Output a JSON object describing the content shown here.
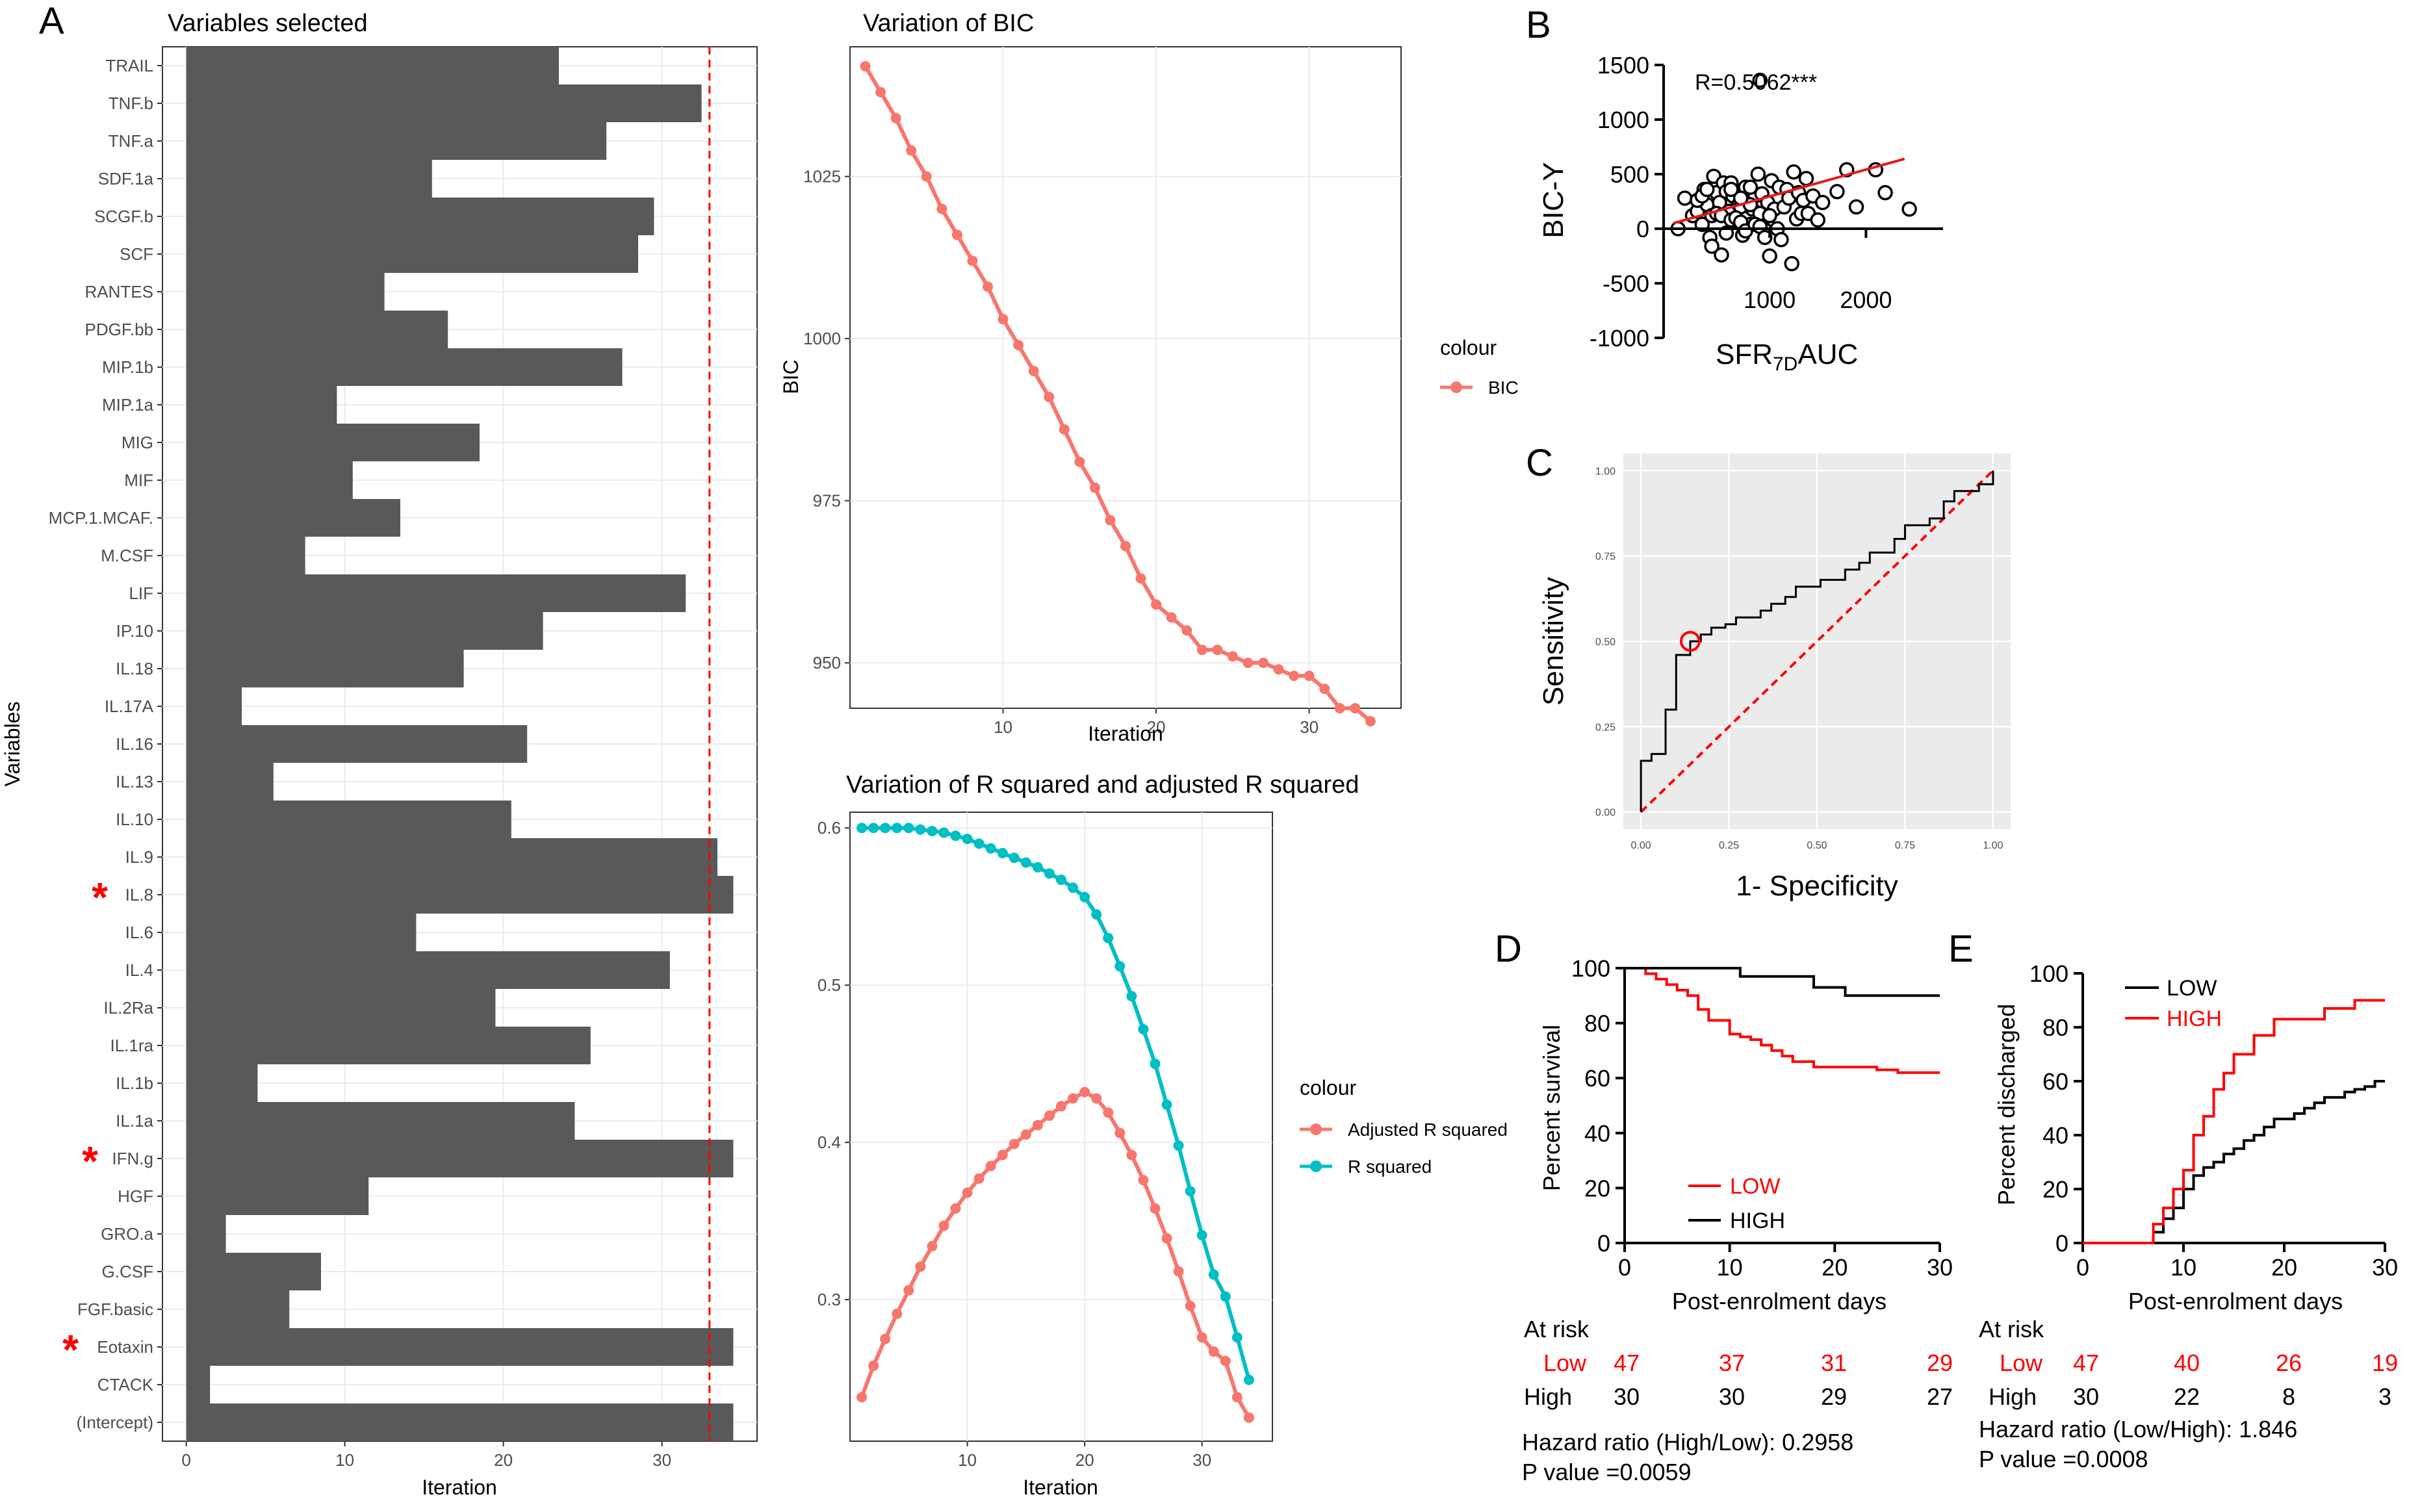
{
  "panel_letters": {
    "A": "A",
    "B": "B",
    "C": "C",
    "D": "D",
    "E": "E"
  },
  "colors": {
    "bar": "#595959",
    "red": "#ff0000",
    "bic": "#f8766d",
    "rsq": "#00bfc4",
    "grid": "#ebebeb",
    "panel_bg": "#ebebeb",
    "axis": "#000000"
  },
  "chart_data": [
    {
      "id": "A",
      "type": "bar",
      "orientation": "horizontal",
      "title": "Variables selected",
      "xlabel": "Iteration",
      "ylabel": "Variables",
      "xlim": [
        -1.5,
        36
      ],
      "xticks": [
        0,
        10,
        20,
        30
      ],
      "threshold": 33,
      "categories": [
        "TRAIL",
        "TNF.b",
        "TNF.a",
        "SDF.1a",
        "SCGF.b",
        "SCF",
        "RANTES",
        "PDGF.bb",
        "MIP.1b",
        "MIP.1a",
        "MIG",
        "MIF",
        "MCP.1.MCAF.",
        "M.CSF",
        "LIF",
        "IP.10",
        "IL.18",
        "IL.17A",
        "IL.16",
        "IL.13",
        "IL.10",
        "IL.9",
        "IL.8",
        "IL.6",
        "IL.4",
        "IL.2Ra",
        "IL.1ra",
        "IL.1b",
        "IL.1a",
        "IFN.g",
        "HGF",
        "GRO.a",
        "G.CSF",
        "FGF.basic",
        "Eotaxin",
        "CTACK",
        "(Intercept)"
      ],
      "values": [
        23.5,
        32.5,
        26.5,
        15.5,
        29.5,
        28.5,
        12.5,
        16.5,
        27.5,
        9.5,
        18.5,
        10.5,
        13.5,
        7.5,
        31.5,
        22.5,
        17.5,
        3.5,
        21.5,
        5.5,
        20.5,
        33.5,
        34.5,
        14.5,
        30.5,
        19.5,
        25.5,
        4.5,
        24.5,
        34.5,
        11.5,
        2.5,
        8.5,
        6.5,
        34.5,
        1.5,
        34.5
      ],
      "starred": [
        "IL.8",
        "IFN.g",
        "Eotaxin"
      ],
      "star_symbol": "*"
    },
    {
      "id": "A-bic",
      "type": "line",
      "title": "Variation of BIC",
      "xlabel": "Iteration",
      "ylabel": "BIC",
      "xlim": [
        0,
        36
      ],
      "ylim": [
        943,
        1045
      ],
      "xticks": [
        10,
        20,
        30
      ],
      "yticks": [
        950,
        975,
        1000,
        1025
      ],
      "legend_title": "colour",
      "series": [
        {
          "name": "BIC",
          "color": "#f8766d",
          "x": [
            1,
            2,
            3,
            4,
            5,
            6,
            7,
            8,
            9,
            10,
            11,
            12,
            13,
            14,
            15,
            16,
            17,
            18,
            19,
            20,
            21,
            22,
            23,
            24,
            25,
            26,
            27,
            28,
            29,
            30,
            31,
            32,
            33,
            34
          ],
          "values": [
            1042,
            1038,
            1034,
            1029,
            1025,
            1020,
            1016,
            1012,
            1008,
            1003,
            999,
            995,
            991,
            986,
            981,
            977,
            972,
            968,
            963,
            959,
            957,
            955,
            952,
            952,
            951,
            950,
            950,
            949,
            948,
            948,
            946,
            943,
            943,
            941
          ]
        }
      ]
    },
    {
      "id": "A-rsq",
      "type": "line",
      "title": "Variation of R squared and adjusted R squared",
      "xlabel": "Iteration",
      "ylabel": "",
      "xlim": [
        0,
        36
      ],
      "ylim": [
        0.21,
        0.61
      ],
      "xticks": [
        10,
        20,
        30
      ],
      "yticks": [
        0.3,
        0.4,
        0.5,
        0.6
      ],
      "legend_title": "colour",
      "series": [
        {
          "name": "Adjusted R squared",
          "color": "#f8766d",
          "x": [
            1,
            2,
            3,
            4,
            5,
            6,
            7,
            8,
            9,
            10,
            11,
            12,
            13,
            14,
            15,
            16,
            17,
            18,
            19,
            20,
            21,
            22,
            23,
            24,
            25,
            26,
            27,
            28,
            29,
            30,
            31,
            32,
            33,
            34
          ],
          "values": [
            0.238,
            0.258,
            0.275,
            0.291,
            0.306,
            0.321,
            0.334,
            0.347,
            0.358,
            0.368,
            0.377,
            0.385,
            0.392,
            0.399,
            0.405,
            0.411,
            0.417,
            0.423,
            0.428,
            0.432,
            0.428,
            0.419,
            0.406,
            0.392,
            0.376,
            0.358,
            0.339,
            0.318,
            0.296,
            0.276,
            0.267,
            0.261,
            0.238,
            0.225
          ]
        },
        {
          "name": "R squared",
          "color": "#00bfc4",
          "x": [
            1,
            2,
            3,
            4,
            5,
            6,
            7,
            8,
            9,
            10,
            11,
            12,
            13,
            14,
            15,
            16,
            17,
            18,
            19,
            20,
            21,
            22,
            23,
            24,
            25,
            26,
            27,
            28,
            29,
            30,
            31,
            32,
            33,
            34
          ],
          "values": [
            0.6,
            0.6,
            0.6,
            0.6,
            0.6,
            0.599,
            0.598,
            0.597,
            0.595,
            0.593,
            0.59,
            0.587,
            0.584,
            0.581,
            0.578,
            0.575,
            0.571,
            0.567,
            0.562,
            0.556,
            0.545,
            0.53,
            0.512,
            0.493,
            0.472,
            0.45,
            0.424,
            0.398,
            0.369,
            0.341,
            0.316,
            0.302,
            0.276,
            0.249
          ]
        }
      ]
    },
    {
      "id": "B",
      "type": "scatter",
      "annotation": "R=0.5062***",
      "xlabel": "SFR",
      "xlabel_sub": "7D",
      "xlabel_suffix": "AUC",
      "ylabel": "BIC-Y",
      "xlim": [
        -100,
        2800
      ],
      "ylim": [
        -1000,
        1500
      ],
      "xticks": [
        1000,
        2000
      ],
      "yticks": [
        -1000,
        -500,
        0,
        500,
        1000,
        1500
      ],
      "fit": {
        "x": [
          0,
          2400
        ],
        "y": [
          50,
          640
        ]
      },
      "x": [
        50,
        120,
        200,
        250,
        300,
        320,
        350,
        380,
        400,
        420,
        450,
        480,
        500,
        520,
        550,
        580,
        600,
        620,
        650,
        680,
        700,
        720,
        750,
        780,
        800,
        820,
        850,
        880,
        900,
        920,
        950,
        980,
        1000,
        1020,
        1050,
        1080,
        1100,
        1120,
        1150,
        1180,
        1200,
        1230,
        1250,
        1280,
        1300,
        1330,
        1350,
        1380,
        1400,
        1450,
        1500,
        1550,
        1700,
        1800,
        1900,
        2100,
        2200,
        2450,
        250,
        300,
        350,
        400,
        450,
        500,
        550,
        600,
        650,
        700,
        750,
        800,
        850,
        900,
        950,
        1000,
        600,
        700,
        800,
        900
      ],
      "values": [
        0,
        280,
        120,
        160,
        40,
        360,
        220,
        -80,
        120,
        480,
        330,
        240,
        -240,
        420,
        340,
        160,
        420,
        300,
        80,
        220,
        200,
        -60,
        380,
        260,
        40,
        180,
        300,
        500,
        140,
        320,
        -10,
        240,
        -250,
        440,
        180,
        0,
        380,
        -100,
        200,
        360,
        280,
        -320,
        520,
        90,
        330,
        140,
        260,
        460,
        140,
        300,
        80,
        240,
        340,
        540,
        200,
        540,
        330,
        180,
        260,
        300,
        360,
        -160,
        140,
        120,
        -40,
        80,
        100,
        60,
        -20,
        220,
        40,
        20,
        -80,
        120,
        360,
        280,
        380,
        1360
      ]
    },
    {
      "id": "C",
      "type": "line",
      "subtype": "roc-step",
      "xlabel": "1- Specificity",
      "ylabel": "Sensitivity",
      "xlim": [
        -0.05,
        1.05
      ],
      "ylim": [
        -0.05,
        1.05
      ],
      "xticks": [
        0,
        0.25,
        0.5,
        0.75,
        1
      ],
      "yticks": [
        0,
        0.25,
        0.5,
        0.75,
        1
      ],
      "xtick_labels": [
        "0.00",
        "0.25",
        "0.50",
        "0.75",
        "1.00"
      ],
      "ytick_labels": [
        "0.00",
        "0.25",
        "0.50",
        "0.75",
        "1.00"
      ],
      "x": [
        0,
        0,
        0.03,
        0.03,
        0.07,
        0.07,
        0.1,
        0.1,
        0.14,
        0.14,
        0.17,
        0.17,
        0.2,
        0.2,
        0.24,
        0.24,
        0.27,
        0.27,
        0.34,
        0.34,
        0.37,
        0.37,
        0.41,
        0.41,
        0.44,
        0.44,
        0.51,
        0.51,
        0.58,
        0.58,
        0.62,
        0.62,
        0.65,
        0.65,
        0.72,
        0.72,
        0.75,
        0.75,
        0.82,
        0.82,
        0.86,
        0.86,
        0.89,
        0.89,
        0.96,
        0.96,
        1.0,
        1.0
      ],
      "values": [
        0,
        0.15,
        0.15,
        0.17,
        0.17,
        0.3,
        0.3,
        0.46,
        0.46,
        0.5,
        0.5,
        0.52,
        0.52,
        0.54,
        0.54,
        0.55,
        0.55,
        0.57,
        0.57,
        0.59,
        0.59,
        0.61,
        0.61,
        0.63,
        0.63,
        0.66,
        0.66,
        0.68,
        0.68,
        0.71,
        0.71,
        0.73,
        0.73,
        0.76,
        0.76,
        0.8,
        0.8,
        0.84,
        0.84,
        0.86,
        0.86,
        0.91,
        0.91,
        0.94,
        0.94,
        0.96,
        0.96,
        1.0
      ],
      "diagonal": true,
      "cutoff_point": {
        "x": 0.14,
        "y": 0.5
      }
    },
    {
      "id": "D",
      "type": "line",
      "subtype": "kaplan-meier",
      "xlabel": "Post-enrolment days",
      "ylabel": "Percent survival",
      "xlim": [
        0,
        30
      ],
      "ylim": [
        0,
        100
      ],
      "xticks": [
        0,
        10,
        20,
        30
      ],
      "yticks": [
        0,
        20,
        40,
        60,
        80,
        100
      ],
      "series": [
        {
          "name": "LOW",
          "color": "#ff0000",
          "x": [
            0,
            2,
            3,
            4,
            5,
            6,
            7,
            8,
            10,
            11,
            12,
            13,
            14,
            15,
            16,
            18,
            20,
            22,
            24,
            26,
            30
          ],
          "values": [
            100,
            98,
            96,
            94,
            92,
            90,
            85,
            81,
            76,
            75,
            74,
            72,
            70,
            68,
            66,
            64,
            64,
            64,
            63,
            62,
            62
          ]
        },
        {
          "name": "HIGH",
          "color": "#000000",
          "x": [
            0,
            11,
            18,
            21,
            30
          ],
          "values": [
            100,
            97,
            93,
            90,
            90
          ]
        }
      ],
      "at_risk": {
        "title": "At risk",
        "days": [
          0,
          10,
          20,
          30
        ],
        "rows": [
          {
            "label": "Low",
            "values": [
              "47",
              "37",
              "31",
              "29"
            ]
          },
          {
            "label": "High",
            "values": [
              "30",
              "30",
              "29",
              "27"
            ]
          }
        ]
      },
      "hazard_text": "Hazard ratio (High/Low): 0.2958",
      "p_text": "P value =0.0059"
    },
    {
      "id": "E",
      "type": "line",
      "subtype": "cumulative-incidence",
      "xlabel": "Post-enrolment days",
      "ylabel": "Percent discharged",
      "xlim": [
        0,
        30
      ],
      "ylim": [
        0,
        100
      ],
      "xticks": [
        0,
        10,
        20,
        30
      ],
      "yticks": [
        0,
        20,
        40,
        60,
        80,
        100
      ],
      "series": [
        {
          "name": "LOW",
          "color": "#000000",
          "x": [
            0,
            6,
            7,
            8,
            9,
            10,
            11,
            12,
            13,
            14,
            15,
            16,
            17,
            18,
            19,
            21,
            22,
            23,
            24,
            26,
            27,
            28,
            29,
            30
          ],
          "values": [
            0,
            0,
            4,
            9,
            13,
            20,
            25,
            28,
            30,
            33,
            35,
            38,
            40,
            43,
            46,
            48,
            50,
            52,
            54,
            56,
            57,
            58,
            60,
            60
          ]
        },
        {
          "name": "HIGH",
          "color": "#ff0000",
          "x": [
            0,
            6,
            7,
            8,
            9,
            10,
            11,
            12,
            13,
            14,
            15,
            17,
            19,
            22,
            24,
            26,
            27,
            30
          ],
          "values": [
            0,
            0,
            7,
            13,
            20,
            27,
            40,
            47,
            57,
            63,
            70,
            77,
            83,
            83,
            87,
            87,
            90,
            90
          ]
        }
      ],
      "at_risk": {
        "title": "At risk",
        "days": [
          0,
          10,
          20,
          30
        ],
        "rows": [
          {
            "label": "Low",
            "values": [
              "47",
              "40",
              "26",
              "19"
            ]
          },
          {
            "label": "High",
            "values": [
              "30",
              "22",
              "8",
              "3"
            ]
          }
        ]
      },
      "hazard_text": "Hazard ratio (Low/High): 1.846",
      "p_text": "P value =0.0008"
    }
  ]
}
